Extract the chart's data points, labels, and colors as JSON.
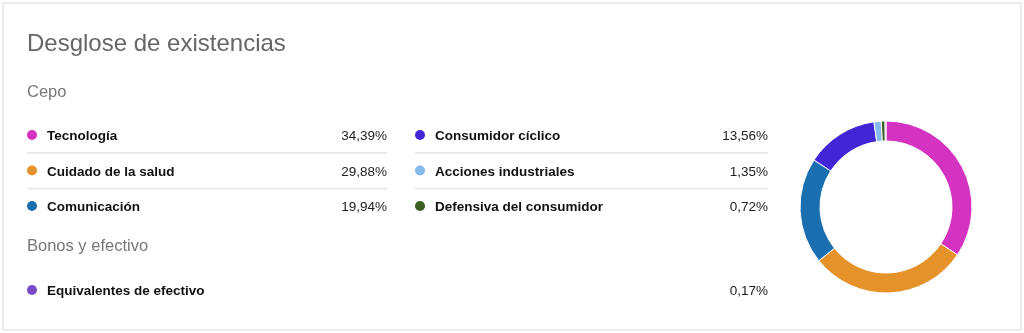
{
  "chart_data": {
    "type": "donut",
    "title": "Desglose de existencias",
    "annotations": [
      "Cepo",
      "Bonos y efectivo"
    ],
    "categories": [
      "Tecnología",
      "Cuidado de la salud",
      "Comunicación",
      "Consumidor cíclico",
      "Acciones industriales",
      "Defensiva del consumidor",
      "Equivalentes de efectivo"
    ],
    "values": [
      34.39,
      29.88,
      19.94,
      13.56,
      1.35,
      0.72,
      0.17
    ],
    "value_labels": [
      "34,39%",
      "29,88%",
      "19,94%",
      "13,56%",
      "1,35%",
      "0,72%",
      "0,17%"
    ],
    "colors": [
      "#d433c2",
      "#e5922b",
      "#1a6fb0",
      "#4225d6",
      "#86b9ec",
      "#3a5f22",
      "#7a4bc6"
    ],
    "legend": "left"
  }
}
